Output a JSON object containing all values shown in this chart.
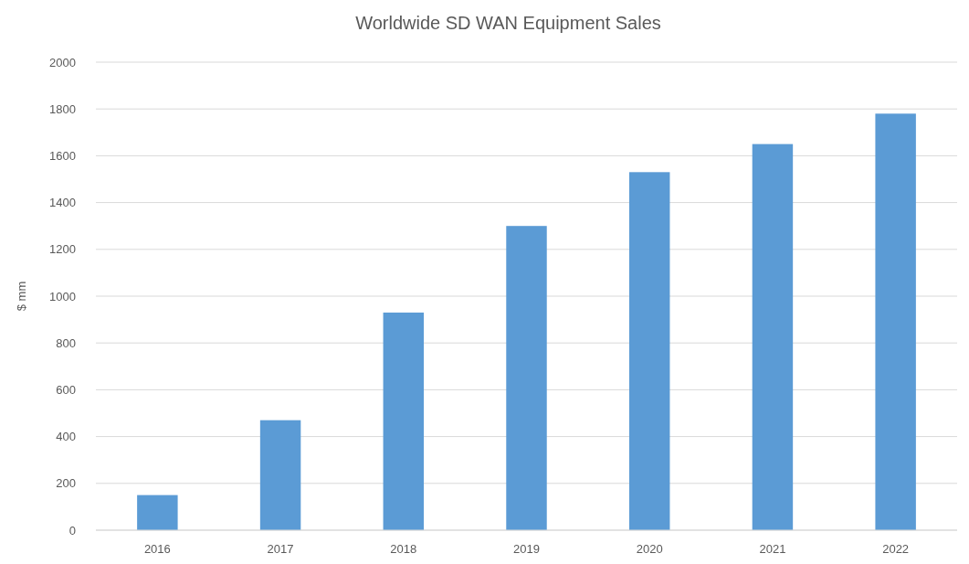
{
  "chart_data": {
    "type": "bar",
    "title": "Worldwide SD WAN Equipment Sales",
    "ylabel": "$ mm",
    "categories": [
      "2016",
      "2017",
      "2018",
      "2019",
      "2020",
      "2021",
      "2022"
    ],
    "values": [
      150,
      470,
      930,
      1300,
      1530,
      1650,
      1780
    ],
    "color": "#5b9bd5",
    "ylim": [
      0,
      2000
    ],
    "yticks": [
      0,
      200,
      400,
      600,
      800,
      1000,
      1200,
      1400,
      1600,
      1800,
      2000
    ],
    "grid": "y"
  }
}
